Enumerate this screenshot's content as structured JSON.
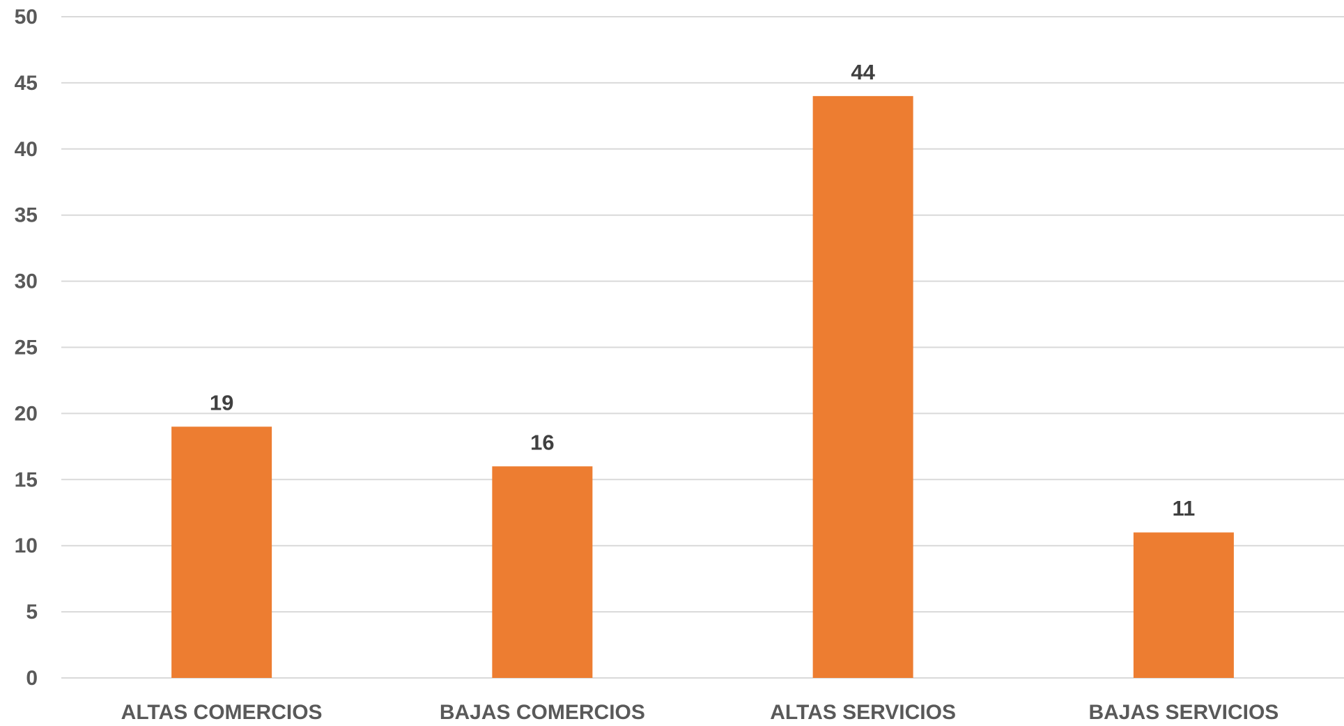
{
  "chart_data": {
    "type": "bar",
    "categories": [
      "ALTAS COMERCIOS",
      "BAJAS COMERCIOS",
      "ALTAS SERVICIOS",
      "BAJAS SERVICIOS"
    ],
    "values": [
      19,
      16,
      44,
      11
    ],
    "data_labels": [
      "19",
      "16",
      "44",
      "11"
    ],
    "ylim": [
      0,
      50
    ],
    "yticks": [
      "0",
      "5",
      "10",
      "15",
      "20",
      "25",
      "30",
      "35",
      "40",
      "45",
      "50"
    ],
    "grid": true,
    "legend": "none",
    "colors": {
      "bar": "#ED7D31",
      "grid": "#D9D9D9",
      "text": "#595959",
      "data_label": "#404040"
    }
  }
}
